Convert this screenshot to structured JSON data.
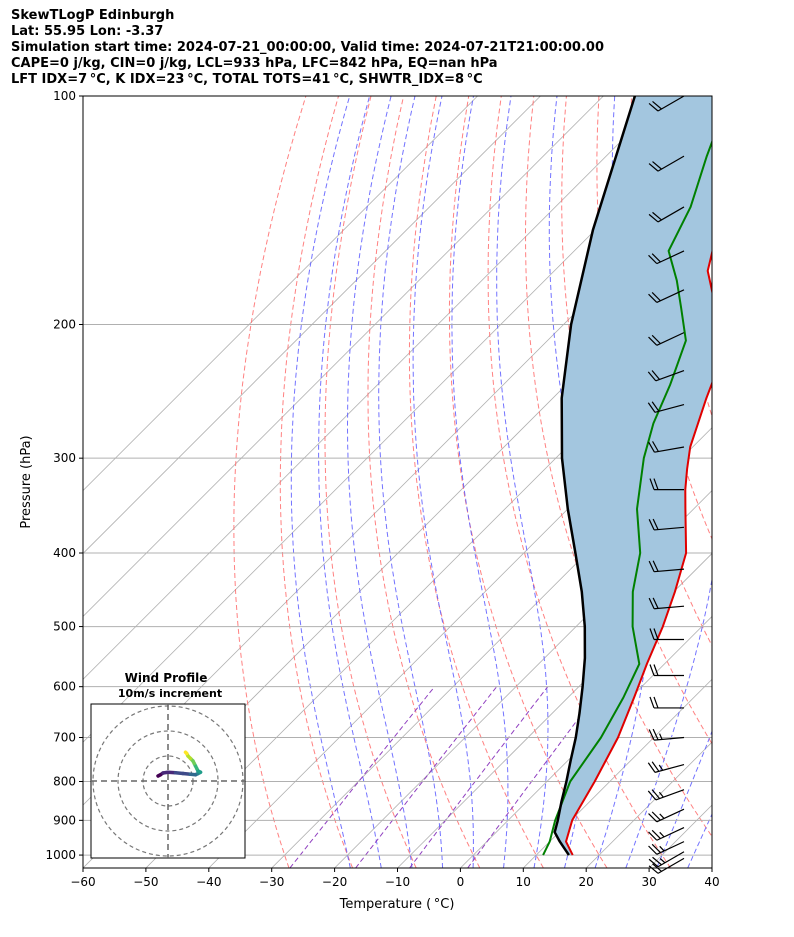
{
  "header": {
    "line1": "SkewTLogP Edinburgh",
    "line2": "Lat: 55.95   Lon: -3.37",
    "line3": "Simulation start time: 2024-07-21_00:00:00, Valid time: 2024-07-21T21:00:00.00",
    "line4": "CAPE=0 j/kg, CIN=0 j/kg, LCL=933 hPa, LFC=842 hPa, EQ=nan hPa",
    "line5": "LFT IDX=7 °C, K IDX=23 °C, TOTAL TOTS=41 °C, SHWTR_IDX=8 °C"
  },
  "colors": {
    "temperature": "#e00000",
    "dewpoint": "#008000",
    "parcel": "#000000",
    "shade": "#a3c6df",
    "dry_adiabat": "#ff6b6b",
    "moist_adiabat": "#5a5aff",
    "mixing_ratio": "#9040c0",
    "isotherm": "#b0b0b0",
    "grid": "#b0b0b0"
  },
  "chart_data": {
    "type": "skewt-logp",
    "xlabel": "Temperature ( °C)",
    "ylabel": "Pressure (hPa)",
    "xlim": [
      -60,
      40
    ],
    "ylim": [
      1040,
      100
    ],
    "x_ticks": [
      -60,
      -50,
      -40,
      -30,
      -20,
      -10,
      0,
      10,
      20,
      30,
      40
    ],
    "x_tick_labels": [
      "−60",
      "−50",
      "−40",
      "−30",
      "−20",
      "−10",
      "0",
      "10",
      "20",
      "30",
      "40"
    ],
    "y_ticks": [
      1000,
      900,
      800,
      700,
      600,
      500,
      400,
      300,
      200,
      100
    ],
    "y_tick_labels": [
      "1000",
      "900",
      "800",
      "700",
      "600",
      "500",
      "400",
      "300",
      "200",
      "100"
    ],
    "temperature": {
      "pressure": [
        1000,
        960,
        900,
        800,
        700,
        620,
        560,
        500,
        450,
        400,
        350,
        330,
        310,
        290,
        270,
        250,
        230,
        210,
        190,
        170,
        150,
        130,
        115,
        100
      ],
      "value": [
        15.8,
        12.6,
        10.2,
        7.6,
        4.3,
        0.5,
        -2.8,
        -6.2,
        -9.8,
        -14.2,
        -21.3,
        -24.4,
        -27.4,
        -30.4,
        -32.9,
        -35.6,
        -38.3,
        -42.4,
        -48.5,
        -55.6,
        -60.6,
        -64.2,
        -65.7,
        -68.3
      ]
    },
    "dewpoint": {
      "pressure": [
        1000,
        960,
        900,
        800,
        700,
        620,
        560,
        500,
        450,
        400,
        350,
        300,
        270,
        240,
        210,
        190,
        175,
        160,
        140,
        120,
        100
      ],
      "value": [
        11.1,
        10.0,
        7.5,
        3.7,
        1.6,
        -1.2,
        -4.0,
        -11.0,
        -16.5,
        -21.5,
        -29.0,
        -36.0,
        -40.0,
        -43.5,
        -48.0,
        -54.0,
        -59.0,
        -65.0,
        -68.5,
        -74.0,
        -80.0
      ]
    },
    "parcel": {
      "pressure": [
        1000,
        960,
        933,
        900,
        850,
        800,
        750,
        700,
        650,
        600,
        550,
        500,
        450,
        400,
        350,
        300,
        250,
        200,
        150,
        100
      ],
      "value": [
        15.2,
        11.6,
        9.3,
        7.9,
        5.5,
        3.1,
        0.4,
        -2.4,
        -5.7,
        -9.4,
        -13.6,
        -18.6,
        -24.6,
        -31.8,
        -40.0,
        -49.0,
        -58.6,
        -68.8,
        -80.4,
        -95.0
      ]
    },
    "wind_barbs": {
      "pressure": [
        1010,
        990,
        960,
        920,
        870,
        820,
        760,
        700,
        640,
        580,
        520,
        470,
        420,
        370,
        330,
        290,
        255,
        230,
        205,
        180,
        160,
        140,
        120,
        100
      ],
      "speed_kt": [
        20,
        25,
        25,
        25,
        25,
        25,
        25,
        25,
        20,
        20,
        20,
        20,
        20,
        20,
        20,
        20,
        20,
        20,
        20,
        20,
        20,
        20,
        20,
        20
      ],
      "direction_deg": [
        240,
        240,
        245,
        245,
        245,
        250,
        255,
        265,
        270,
        270,
        270,
        265,
        265,
        265,
        270,
        260,
        255,
        250,
        245,
        245,
        245,
        240,
        240,
        240
      ]
    },
    "hodograph": {
      "title": "Wind Profile",
      "subtitle": "10m/s increment",
      "ring_step_ms": 10,
      "u": [
        -4.0,
        -3.0,
        -2.0,
        0.0,
        3.0,
        6.0,
        9.0,
        11.0,
        12.0,
        13.0,
        12.0,
        11.5,
        11.0,
        10.5,
        10.0,
        9.0,
        8.0,
        7.5,
        7.0
      ],
      "v": [
        2.0,
        2.5,
        3.2,
        3.5,
        3.3,
        3.0,
        2.7,
        2.5,
        3.0,
        3.5,
        4.0,
        5.0,
        6.0,
        7.0,
        8.0,
        9.0,
        10.0,
        11.0,
        11.5
      ]
    }
  }
}
